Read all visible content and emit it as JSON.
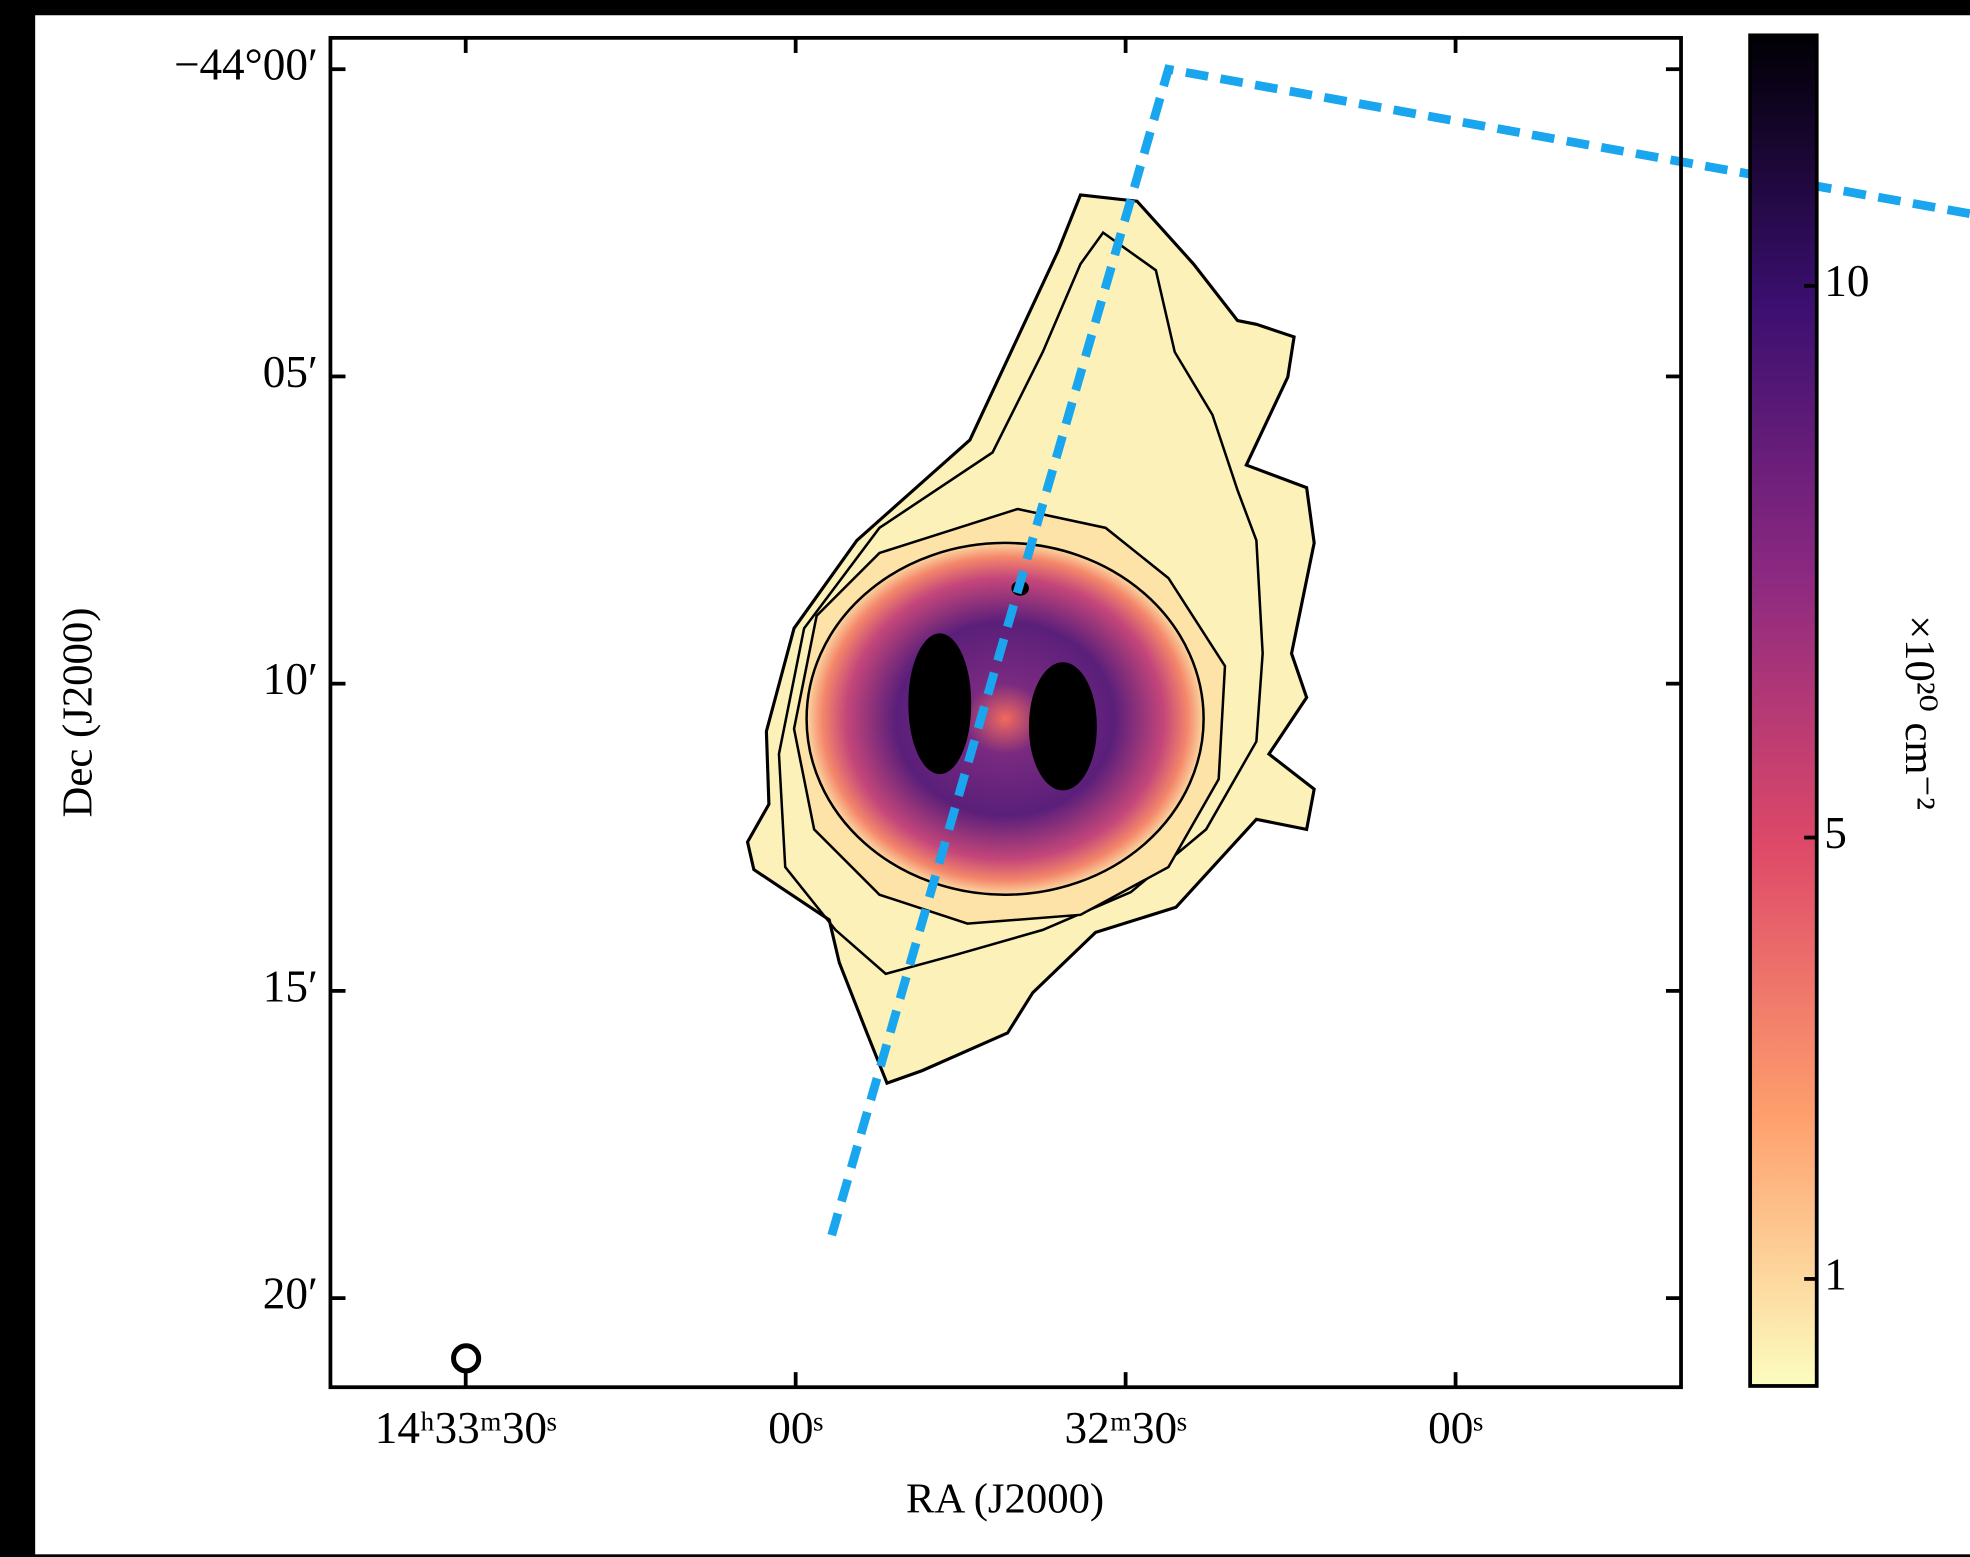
{
  "chart_data": {
    "type": "map",
    "xlabel": "RA (J2000)",
    "ylabel": "Dec (J2000)",
    "xlim": [
      52422.3,
      52299.5
    ],
    "xticks": [
      {
        "value": 52410,
        "label": "14ʰ33ᵐ30ˢ"
      },
      {
        "value": 52380,
        "label": "00ˢ"
      },
      {
        "value": 52350,
        "label": "32ᵐ30ˢ"
      },
      {
        "value": 52320,
        "label": "00ˢ"
      }
    ],
    "ylim": [
      -2661.45,
      -2639.49
    ],
    "yticks": [
      {
        "value": -2640,
        "label": "−44°00′"
      },
      {
        "value": -2645,
        "label": "05′"
      },
      {
        "value": -2650,
        "label": "10′"
      },
      {
        "value": -2655,
        "label": "15′"
      },
      {
        "value": -2660,
        "label": "20′"
      }
    ],
    "colorbar": {
      "label": "×10²⁰ cm⁻²",
      "lim": [
        0.03,
        12.27
      ],
      "ticks": [
        1,
        5,
        10
      ],
      "colormap": [
        "#fcfdbf",
        "#fe9f6d",
        "#de4968",
        "#8c2981",
        "#3b0f70",
        "#000004"
      ]
    }
  }
}
